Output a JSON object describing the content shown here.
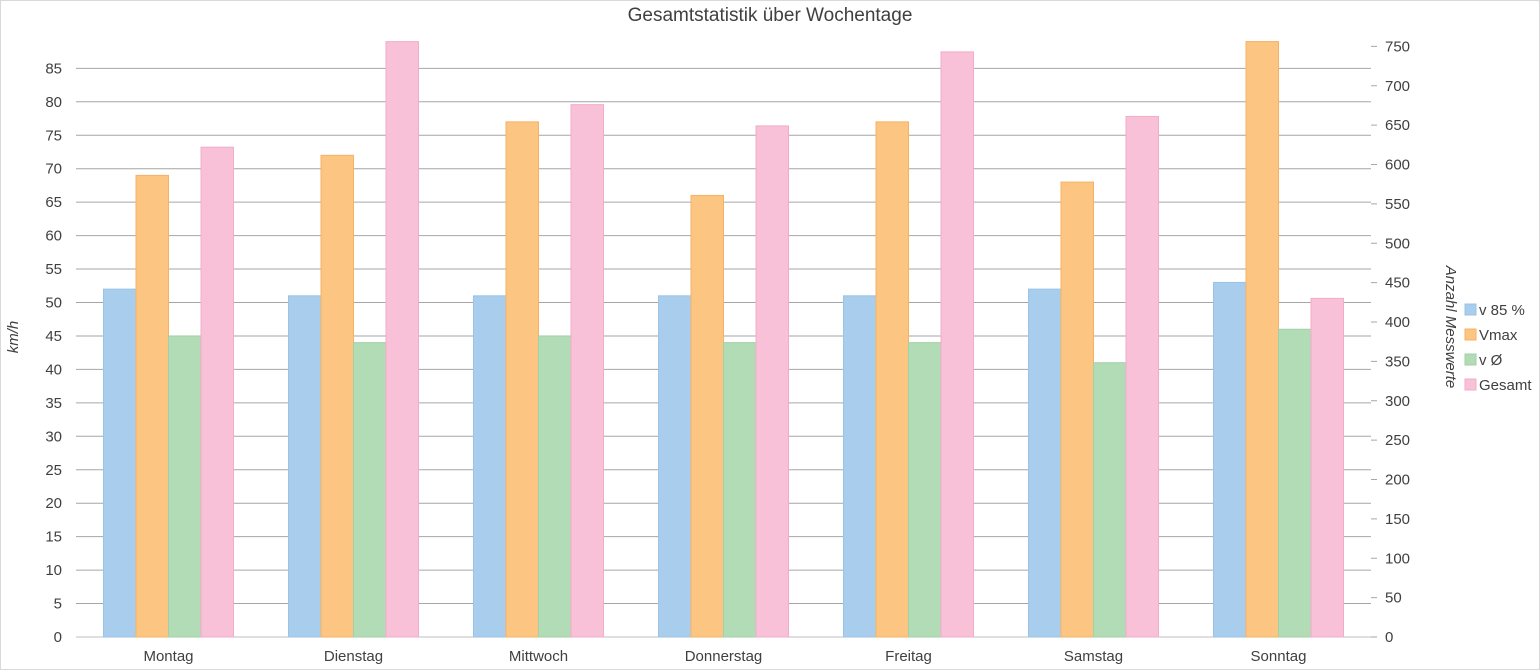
{
  "chart_data": {
    "type": "bar",
    "title": "Gesamtstatistik über Wochentage",
    "ylabel": "km/h",
    "y2label": "Anzahl Messwerte",
    "ylim": [
      0,
      89.6
    ],
    "y2lim": [
      0,
      790
    ],
    "yticks": [
      "0",
      "5",
      "10",
      "15",
      "20",
      "25",
      "30",
      "35",
      "40",
      "45",
      "50",
      "55",
      "60",
      "65",
      "70",
      "75",
      "80",
      "85"
    ],
    "y2ticks": [
      "0",
      "50",
      "100",
      "150",
      "200",
      "250",
      "300",
      "350",
      "400",
      "450",
      "500",
      "550",
      "600",
      "650",
      "700",
      "750"
    ],
    "categories": [
      "Montag",
      "Dienstag",
      "Mittwoch",
      "Donnerstag",
      "Freitag",
      "Samstag",
      "Sonntag"
    ],
    "legend_position": "right",
    "grid": true,
    "series": [
      {
        "name": "v 85 %",
        "axis": "left",
        "color": "#a9cdec",
        "border": "#9cc3e6",
        "values": [
          52,
          51,
          51,
          51,
          51,
          52,
          53
        ]
      },
      {
        "name": "Vmax",
        "axis": "left",
        "color": "#fcc581",
        "border": "#f4b266",
        "values": [
          69,
          72,
          77,
          66,
          77,
          68,
          89
        ]
      },
      {
        "name": "v Ø",
        "axis": "left",
        "color": "#b2dcb5",
        "border": "#a2d1a5",
        "values": [
          45,
          44,
          45,
          44,
          44,
          41,
          46
        ]
      },
      {
        "name": "Gesamt",
        "axis": "right",
        "color": "#f8c1d8",
        "border": "#f1acc8",
        "values": [
          622,
          756,
          676,
          649,
          743,
          661,
          430
        ]
      }
    ]
  }
}
